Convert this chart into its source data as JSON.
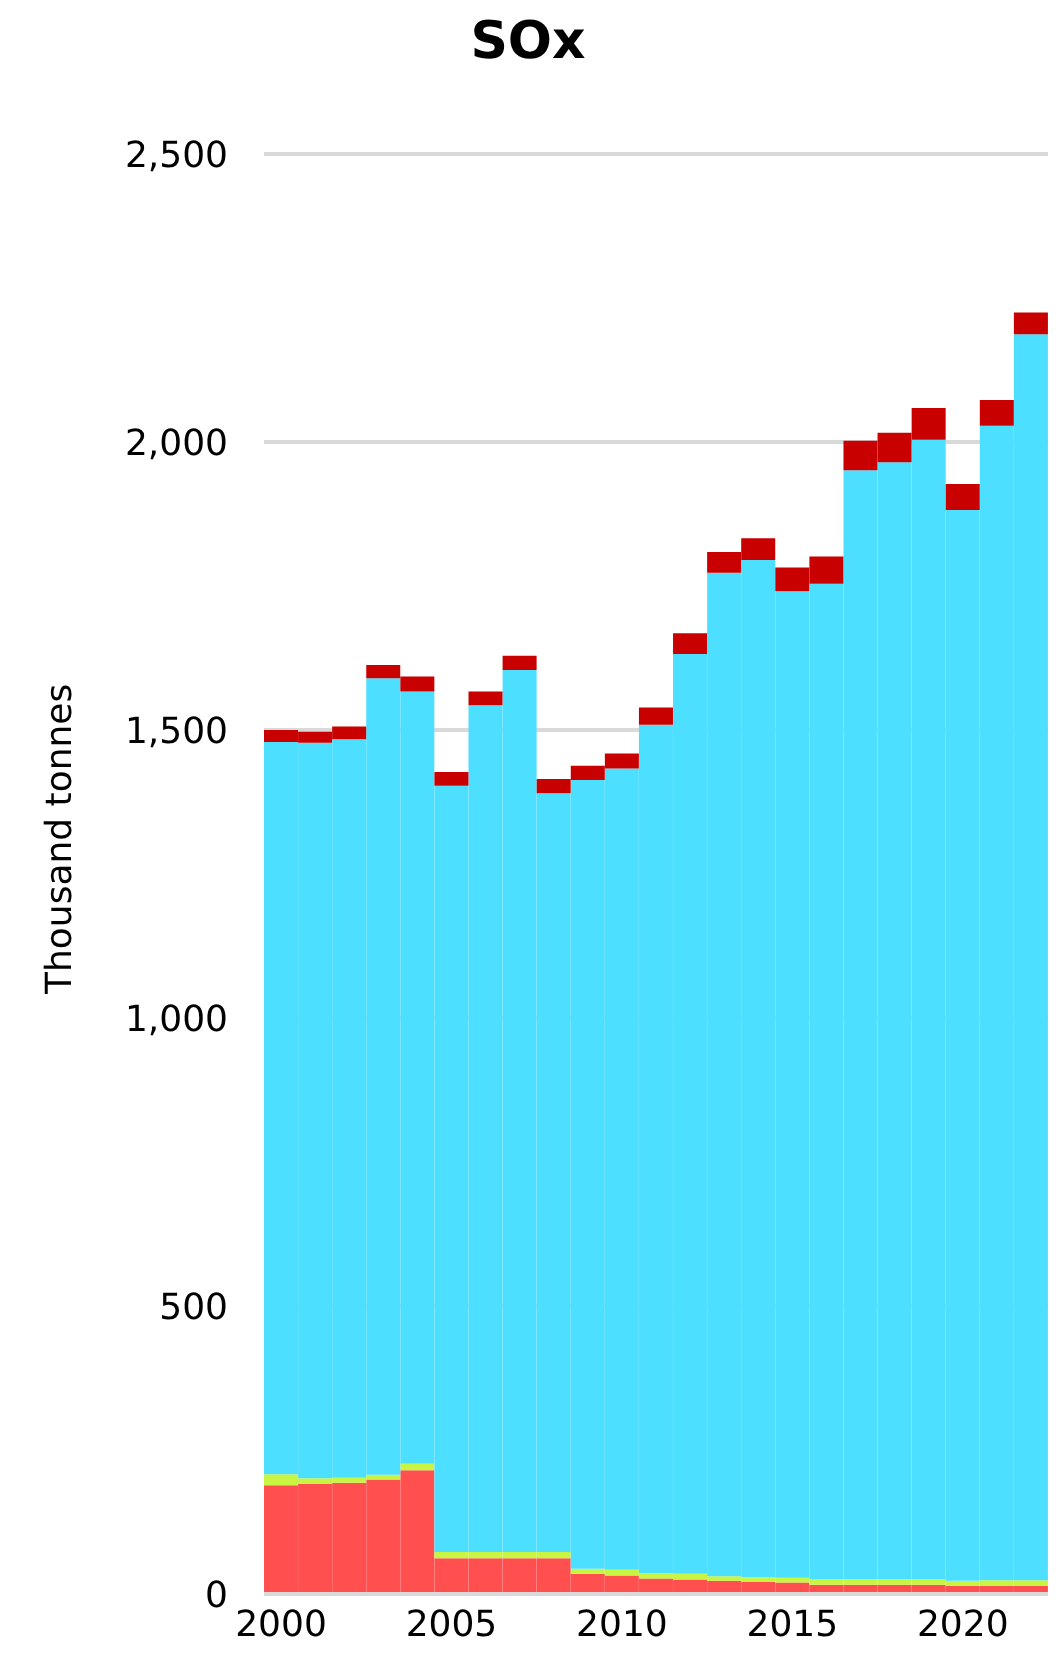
{
  "chart_data": {
    "type": "bar",
    "title": "SOx",
    "ylabel": "Thousand tonnes",
    "stacked": true,
    "grid": "y",
    "legend": false,
    "categories": [
      "2000",
      null,
      null,
      null,
      null,
      "2005",
      null,
      null,
      null,
      null,
      "2010",
      null,
      null,
      null,
      null,
      "2015",
      null,
      null,
      null,
      null,
      "2020",
      null,
      null
    ],
    "series": [
      {
        "color": "#ff4f4f",
        "values": [
          189,
          191,
          193,
          199,
          215,
          62,
          62,
          62,
          62,
          35,
          32,
          27,
          25,
          23,
          21,
          20,
          16,
          16,
          16,
          16,
          14,
          14,
          14
        ]
      },
      {
        "color": "#c8f542",
        "values": [
          19,
          10,
          9,
          8,
          11,
          11,
          11,
          11,
          11,
          9,
          10,
          9,
          10,
          8,
          8,
          8,
          9,
          9,
          9,
          9,
          9,
          10,
          10
        ]
      },
      {
        "color": "#4ddfff",
        "values": [
          1271,
          1277,
          1282,
          1383,
          1341,
          1330,
          1470,
          1531,
          1317,
          1369,
          1391,
          1473,
          1597,
          1742,
          1766,
          1713,
          1729,
          1926,
          1940,
          1979,
          1859,
          2004,
          2163
        ]
      },
      {
        "color": "#c80000",
        "values": [
          21,
          19,
          22,
          23,
          26,
          24,
          24,
          25,
          25,
          25,
          26,
          30,
          36,
          36,
          38,
          41,
          47,
          51,
          51,
          55,
          45,
          45,
          38
        ]
      }
    ],
    "ylim": [
      0,
      2500
    ],
    "yticks": [
      {
        "value": 0,
        "label": "0"
      },
      {
        "value": 500,
        "label": "500"
      },
      {
        "value": 1000,
        "label": "1,000"
      },
      {
        "value": 1500,
        "label": "1,500"
      },
      {
        "value": 2000,
        "label": "2,000"
      },
      {
        "value": 2500,
        "label": "2,500"
      }
    ]
  }
}
